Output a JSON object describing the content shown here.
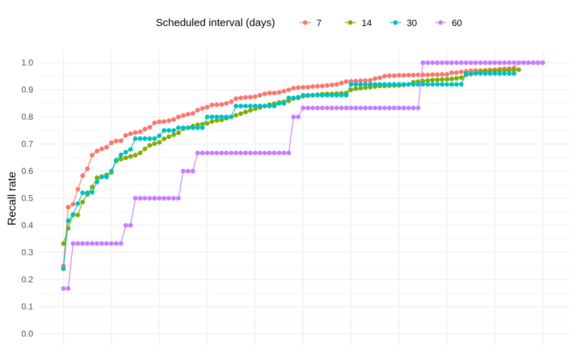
{
  "chart_data": {
    "type": "line",
    "ylabel": "Recall rate",
    "xlabel": "",
    "legend_title": "Scheduled interval (days)",
    "legend_position": "top",
    "grid": true,
    "ylim": [
      0,
      1
    ],
    "xlim": [
      0,
      100
    ],
    "x_axis_tick_labels": "none",
    "y_ticks": [
      "0.0",
      "0.1",
      "0.2",
      "0.3",
      "0.4",
      "0.5",
      "0.6",
      "0.7",
      "0.8",
      "0.9",
      "1.0"
    ],
    "series": [
      {
        "name": "7",
        "color": "#F8766D",
        "x": [
          0,
          1,
          2,
          3,
          4,
          5,
          6,
          7,
          8,
          9,
          10,
          11,
          12,
          13,
          14,
          15,
          16,
          17,
          18,
          19,
          20,
          21,
          22,
          23,
          24,
          25,
          26,
          27,
          28,
          29,
          30,
          31,
          32,
          33,
          34,
          35,
          36,
          37,
          38,
          39,
          40,
          41,
          42,
          43,
          44,
          45,
          46,
          47,
          48,
          49,
          50,
          51,
          52,
          53,
          54,
          55,
          56,
          57,
          58,
          59,
          60,
          61,
          62,
          63,
          64,
          65,
          66,
          67,
          68,
          69,
          70,
          71,
          72,
          73,
          74,
          75,
          76,
          77,
          78,
          79,
          80,
          81,
          82,
          83,
          84,
          85,
          86,
          87,
          88,
          89,
          90,
          91,
          92,
          93,
          94,
          95,
          96,
          97,
          98,
          99,
          100
        ],
        "y": [
          0.25,
          0.467,
          0.478,
          0.533,
          0.583,
          0.609,
          0.659,
          0.674,
          0.682,
          0.688,
          0.704,
          0.711,
          0.712,
          0.732,
          0.738,
          0.742,
          0.745,
          0.755,
          0.762,
          0.778,
          0.782,
          0.783,
          0.786,
          0.79,
          0.8,
          0.805,
          0.81,
          0.813,
          0.825,
          0.831,
          0.836,
          0.844,
          0.845,
          0.846,
          0.85,
          0.856,
          0.867,
          0.87,
          0.872,
          0.873,
          0.875,
          0.88,
          0.885,
          0.888,
          0.888,
          0.89,
          0.895,
          0.9,
          0.906,
          0.908,
          0.909,
          0.91,
          0.912,
          0.913,
          0.914,
          0.916,
          0.918,
          0.92,
          0.925,
          0.93,
          0.931,
          0.932,
          0.933,
          0.934,
          0.935,
          0.941,
          0.944,
          0.95,
          0.952,
          0.952,
          0.953,
          0.953,
          0.954,
          0.954,
          0.955,
          0.955,
          0.955,
          0.956,
          0.956,
          0.957,
          0.957,
          0.963,
          0.963,
          0.966,
          0.968,
          0.97,
          0.971,
          0.971,
          0.972,
          0.973,
          0.974,
          0.976,
          0.977,
          0.978,
          0.98,
          1.0,
          1.0,
          1.0,
          1.0,
          1.0,
          1.0
        ]
      },
      {
        "name": "14",
        "color": "#7CAE00",
        "x": [
          0,
          1,
          2,
          3,
          4,
          5,
          6,
          7,
          8,
          9,
          10,
          11,
          12,
          13,
          14,
          15,
          16,
          17,
          18,
          19,
          20,
          21,
          22,
          23,
          24,
          25,
          26,
          27,
          28,
          29,
          30,
          31,
          32,
          33,
          34,
          35,
          36,
          37,
          38,
          39,
          40,
          41,
          42,
          43,
          44,
          45,
          46,
          47,
          48,
          49,
          50,
          51,
          52,
          53,
          54,
          55,
          56,
          57,
          58,
          59,
          60,
          61,
          62,
          63,
          64,
          65,
          66,
          67,
          68,
          69,
          70,
          71,
          72,
          73,
          74,
          75,
          76,
          77,
          78,
          79,
          80,
          81,
          82,
          83,
          84,
          85,
          86,
          87,
          88,
          89,
          90,
          91,
          92,
          93,
          94,
          95
        ],
        "y": [
          0.333,
          0.389,
          0.438,
          0.438,
          0.486,
          0.514,
          0.541,
          0.576,
          0.578,
          0.586,
          0.595,
          0.637,
          0.644,
          0.649,
          0.654,
          0.659,
          0.667,
          0.682,
          0.695,
          0.701,
          0.706,
          0.719,
          0.727,
          0.734,
          0.741,
          0.756,
          0.76,
          0.766,
          0.771,
          0.773,
          0.776,
          0.783,
          0.787,
          0.789,
          0.795,
          0.8,
          0.806,
          0.812,
          0.818,
          0.824,
          0.83,
          0.835,
          0.84,
          0.845,
          0.849,
          0.853,
          0.856,
          0.859,
          0.868,
          0.873,
          0.876,
          0.878,
          0.88,
          0.882,
          0.884,
          0.885,
          0.885,
          0.886,
          0.887,
          0.888,
          0.9,
          0.904,
          0.906,
          0.908,
          0.91,
          0.912,
          0.914,
          0.914,
          0.915,
          0.916,
          0.916,
          0.918,
          0.92,
          0.928,
          0.93,
          0.932,
          0.934,
          0.936,
          0.937,
          0.938,
          0.939,
          0.94,
          0.942,
          0.945,
          0.955,
          0.958,
          0.962,
          0.965,
          0.968,
          0.969,
          0.97,
          0.97,
          0.971,
          0.972,
          0.973,
          0.974
        ]
      },
      {
        "name": "30",
        "color": "#00BFC4",
        "x": [
          0,
          1,
          2,
          3,
          4,
          5,
          6,
          7,
          8,
          9,
          10,
          11,
          12,
          13,
          14,
          15,
          16,
          17,
          18,
          19,
          20,
          21,
          22,
          23,
          24,
          25,
          26,
          27,
          28,
          29,
          30,
          31,
          32,
          33,
          34,
          35,
          36,
          37,
          38,
          39,
          40,
          41,
          42,
          43,
          44,
          45,
          46,
          47,
          48,
          49,
          50,
          51,
          52,
          53,
          54,
          55,
          56,
          57,
          58,
          59,
          60,
          61,
          62,
          63,
          64,
          65,
          66,
          67,
          68,
          69,
          70,
          71,
          72,
          73,
          74,
          75,
          76,
          77,
          78,
          79,
          80,
          81,
          82,
          83,
          84,
          85,
          86,
          87,
          88,
          89,
          90,
          91,
          92,
          93,
          94
        ],
        "y": [
          0.24,
          0.417,
          0.44,
          0.48,
          0.52,
          0.52,
          0.522,
          0.56,
          0.58,
          0.578,
          0.6,
          0.64,
          0.66,
          0.67,
          0.68,
          0.72,
          0.72,
          0.72,
          0.72,
          0.72,
          0.73,
          0.75,
          0.75,
          0.75,
          0.76,
          0.76,
          0.76,
          0.76,
          0.76,
          0.76,
          0.8,
          0.8,
          0.8,
          0.8,
          0.8,
          0.8,
          0.84,
          0.84,
          0.84,
          0.84,
          0.84,
          0.84,
          0.84,
          0.84,
          0.84,
          0.85,
          0.85,
          0.87,
          0.87,
          0.87,
          0.88,
          0.88,
          0.88,
          0.88,
          0.88,
          0.88,
          0.88,
          0.88,
          0.88,
          0.88,
          0.92,
          0.92,
          0.92,
          0.92,
          0.92,
          0.92,
          0.92,
          0.92,
          0.92,
          0.92,
          0.92,
          0.92,
          0.92,
          0.92,
          0.92,
          0.92,
          0.92,
          0.92,
          0.92,
          0.92,
          0.92,
          0.92,
          0.92,
          0.92,
          0.96,
          0.96,
          0.96,
          0.96,
          0.96,
          0.96,
          0.96,
          0.96,
          0.96,
          0.96,
          0.96
        ]
      },
      {
        "name": "60",
        "color": "#C77CFF",
        "x": [
          0,
          1,
          2,
          3,
          4,
          5,
          6,
          7,
          8,
          9,
          10,
          11,
          12,
          13,
          14,
          15,
          16,
          17,
          18,
          19,
          20,
          21,
          22,
          23,
          24,
          25,
          26,
          27,
          28,
          29,
          30,
          31,
          32,
          33,
          34,
          35,
          36,
          37,
          38,
          39,
          40,
          41,
          42,
          43,
          44,
          45,
          46,
          47,
          48,
          49,
          50,
          51,
          52,
          53,
          54,
          55,
          56,
          57,
          58,
          59,
          60,
          61,
          62,
          63,
          64,
          65,
          66,
          67,
          68,
          69,
          70,
          71,
          72,
          73,
          74,
          75,
          76,
          77,
          78,
          79,
          80,
          81,
          82,
          83,
          84,
          85,
          86,
          87,
          88,
          89,
          90,
          91,
          92,
          93,
          94,
          95,
          96,
          97,
          98,
          99,
          100
        ],
        "y": [
          0.167,
          0.167,
          0.333,
          0.333,
          0.333,
          0.333,
          0.333,
          0.333,
          0.333,
          0.333,
          0.333,
          0.333,
          0.333,
          0.4,
          0.4,
          0.5,
          0.5,
          0.5,
          0.5,
          0.5,
          0.5,
          0.5,
          0.5,
          0.5,
          0.5,
          0.6,
          0.6,
          0.6,
          0.667,
          0.667,
          0.667,
          0.667,
          0.667,
          0.667,
          0.667,
          0.667,
          0.667,
          0.667,
          0.667,
          0.667,
          0.667,
          0.667,
          0.667,
          0.667,
          0.667,
          0.667,
          0.667,
          0.667,
          0.8,
          0.8,
          0.833,
          0.833,
          0.833,
          0.833,
          0.833,
          0.833,
          0.833,
          0.833,
          0.833,
          0.833,
          0.833,
          0.833,
          0.833,
          0.833,
          0.833,
          0.833,
          0.833,
          0.833,
          0.833,
          0.833,
          0.833,
          0.833,
          0.833,
          0.833,
          0.833,
          1.0,
          1.0,
          1.0,
          1.0,
          1.0,
          1.0,
          1.0,
          1.0,
          1.0,
          1.0,
          1.0,
          1.0,
          1.0,
          1.0,
          1.0,
          1.0,
          1.0,
          1.0,
          1.0,
          1.0,
          1.0,
          1.0,
          1.0,
          1.0,
          1.0,
          1.0
        ]
      }
    ]
  }
}
